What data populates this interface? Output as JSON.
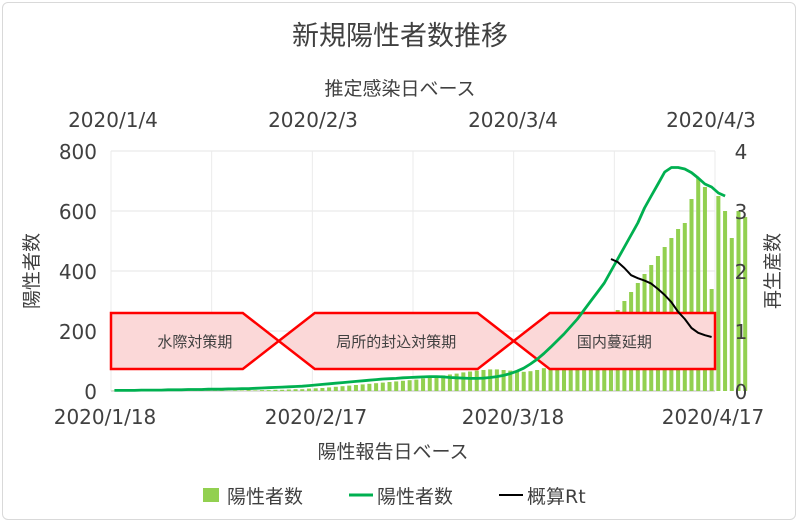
{
  "chart_data": {
    "type": "bar",
    "title": "新規陽性者数推移",
    "top_axis_label": "推定感染日ベース",
    "top_ticks": [
      "2020/1/4",
      "2020/2/3",
      "2020/3/4",
      "2020/4/3"
    ],
    "bottom_ticks": [
      "2020/1/18",
      "2020/2/17",
      "2020/3/18",
      "2020/4/17"
    ],
    "xlabel": "陽性報告日ベース",
    "ylabel": "陽性者数",
    "y2label": "再生産数",
    "y_ticks": [
      "0",
      "200",
      "400",
      "600",
      "800"
    ],
    "y2_ticks": [
      "0",
      "1",
      "2",
      "3",
      "4"
    ],
    "ylim": [
      0,
      800
    ],
    "y2lim": [
      0,
      4
    ],
    "x_range_days": [
      0,
      90
    ],
    "grid": true,
    "legend_position": "bottom",
    "phases": [
      {
        "label": "水際対策期",
        "start": 0,
        "end": 25
      },
      {
        "label": "局所的封込対策期",
        "start": 25,
        "end": 60
      },
      {
        "label": "国内蔓延期",
        "start": 60,
        "end": 90
      }
    ],
    "series": [
      {
        "name": "陽性者数",
        "kind": "bar",
        "color": "#92d050",
        "start_day": 0,
        "values": [
          1,
          0,
          0,
          1,
          0,
          0,
          1,
          0,
          1,
          1,
          0,
          1,
          1,
          2,
          1,
          1,
          2,
          1,
          2,
          2,
          3,
          2,
          3,
          3,
          4,
          4,
          5,
          6,
          6,
          8,
          9,
          10,
          12,
          14,
          16,
          18,
          20,
          22,
          24,
          26,
          28,
          30,
          32,
          34,
          36,
          38,
          42,
          46,
          48,
          52,
          55,
          58,
          62,
          65,
          68,
          70,
          72,
          72,
          70,
          68,
          66,
          64,
          66,
          70,
          76,
          82,
          90,
          102,
          116,
          132,
          150,
          170,
          195,
          218,
          242,
          270,
          300,
          330,
          360,
          390,
          420,
          450,
          480,
          510,
          540,
          560,
          640,
          710,
          680,
          340,
          650,
          600,
          510,
          600,
          580
        ]
      },
      {
        "name": "陽性者数",
        "kind": "line",
        "color": "#00b050",
        "start_day": 0,
        "values": [
          2,
          2,
          2,
          2,
          3,
          3,
          3,
          3,
          4,
          4,
          4,
          5,
          5,
          5,
          6,
          6,
          6,
          7,
          7,
          8,
          8,
          9,
          10,
          11,
          12,
          13,
          14,
          15,
          16,
          18,
          20,
          22,
          24,
          26,
          28,
          30,
          32,
          34,
          36,
          38,
          40,
          41,
          42,
          44,
          45,
          46,
          47,
          48,
          48,
          47,
          45,
          44,
          43,
          42,
          42,
          43,
          45,
          48,
          52,
          58,
          66,
          76,
          90,
          106,
          125,
          146,
          168,
          190,
          215,
          240,
          270,
          300,
          330,
          360,
          400,
          440,
          480,
          520,
          560,
          610,
          650,
          690,
          730,
          745,
          745,
          740,
          728,
          710,
          690,
          680,
          660,
          650
        ]
      },
      {
        "name": "概算Rt",
        "kind": "line",
        "axis": "right",
        "color": "#000000",
        "start_day": 74,
        "values": [
          2.2,
          2.15,
          2.05,
          1.93,
          1.88,
          1.84,
          1.79,
          1.7,
          1.6,
          1.48,
          1.32,
          1.2,
          1.05,
          0.97,
          0.93,
          0.9
        ]
      }
    ]
  }
}
